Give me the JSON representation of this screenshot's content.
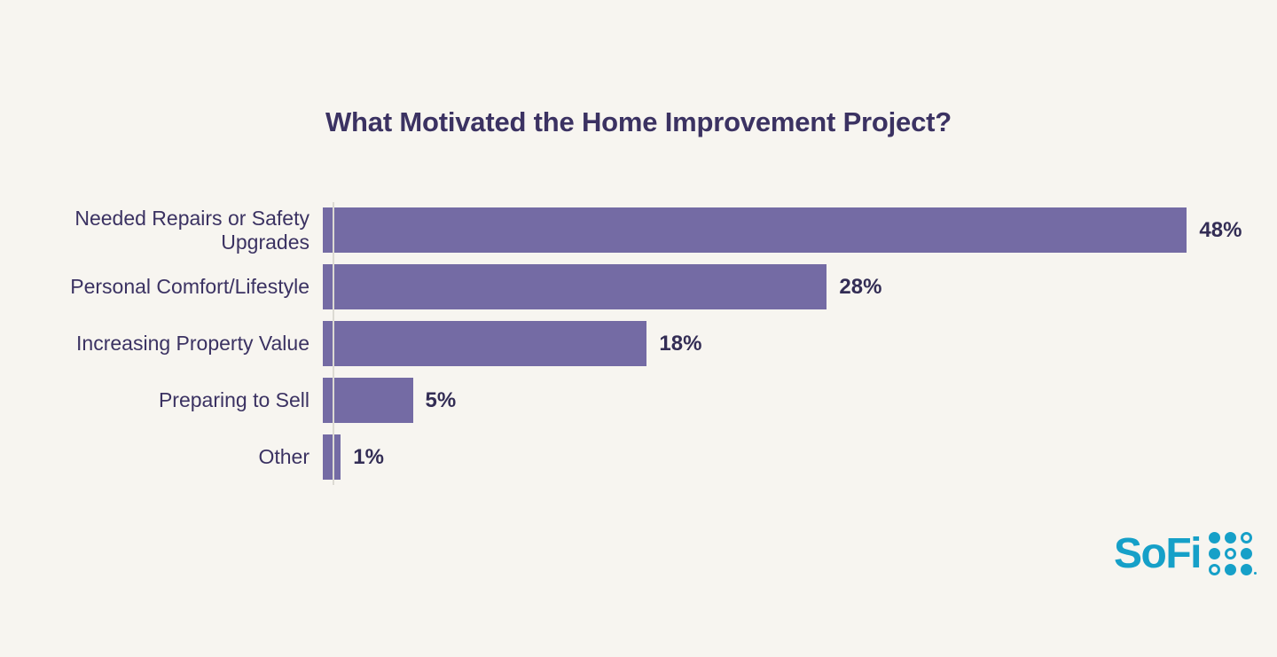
{
  "page": {
    "background_color": "#F7F5F0"
  },
  "title": "What Motivated the Home Improvement Project?",
  "chart_data": {
    "type": "bar",
    "orientation": "horizontal",
    "title": "What Motivated the Home Improvement Project?",
    "categories": [
      "Needed Repairs or Safety Upgrades",
      "Personal Comfort/Lifestyle",
      "Increasing Property Value",
      "Preparing to Sell",
      "Other"
    ],
    "values": [
      48,
      28,
      18,
      5,
      1
    ],
    "value_labels": [
      "48%",
      "28%",
      "18%",
      "5%",
      "1%"
    ],
    "xlabel": "",
    "ylabel": "",
    "xlim": [
      0,
      52
    ],
    "grid": false,
    "legend": false,
    "bar_color": "#746BA4",
    "label_color": "#3B3262",
    "value_color": "#332D55",
    "axis_line_color": "#DCDAD3"
  },
  "logo": {
    "text": "SoFi",
    "color": "#16A0C8",
    "dot_grid": [
      [
        "filled",
        "filled",
        "ring"
      ],
      [
        "filled",
        "ring",
        "filled"
      ],
      [
        "ring",
        "filled",
        "filled"
      ]
    ]
  }
}
